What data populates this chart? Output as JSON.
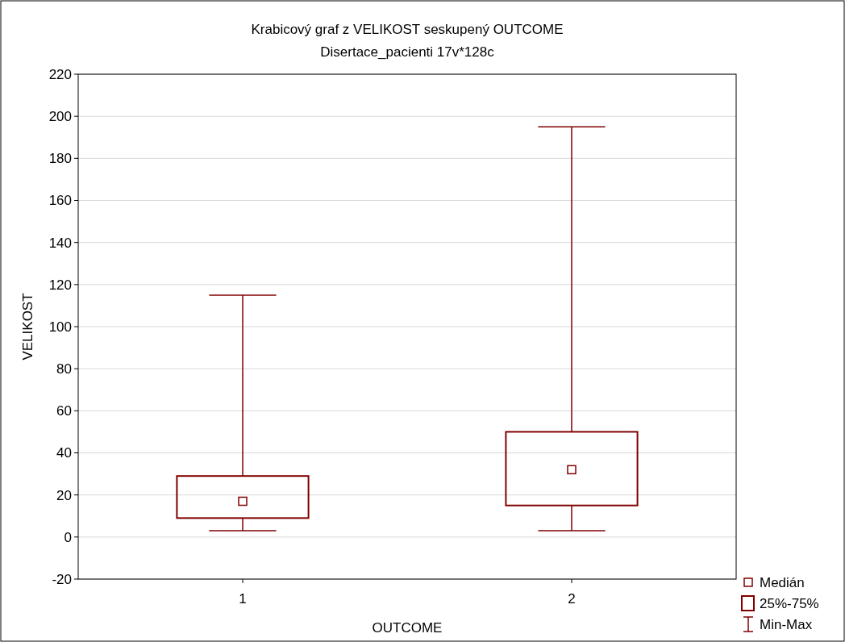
{
  "chart_data": {
    "type": "box",
    "title": "Krabicový graf z VELIKOST seskupený OUTCOME",
    "subtitle": "Disertace_pacienti 17v*128c",
    "xlabel": "OUTCOME",
    "ylabel": "VELIKOST",
    "categories": [
      "1",
      "2"
    ],
    "series": [
      {
        "color": "#800000",
        "boxes": [
          {
            "low": 3,
            "q1": 9,
            "median": 17,
            "q3": 29,
            "high": 115
          },
          {
            "low": 3,
            "q1": 15,
            "median": 32,
            "q3": 50,
            "high": 195
          }
        ]
      }
    ],
    "ylim": [
      -20,
      220
    ],
    "yticks": [
      -20,
      0,
      20,
      40,
      60,
      80,
      100,
      120,
      140,
      160,
      180,
      200,
      220
    ],
    "grid": "y",
    "annotations": [
      "Medián",
      "25%-75%",
      "Min-Max"
    ]
  }
}
